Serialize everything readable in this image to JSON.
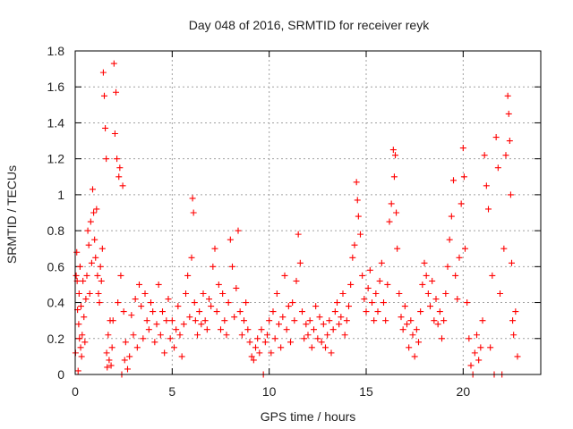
{
  "chart_data": {
    "type": "scatter",
    "title": "Day 048 of 2016, SRMTID for receiver reyk",
    "xlabel": "GPS time / hours",
    "ylabel": "SRMTID / TECUs",
    "xlim": [
      0,
      24
    ],
    "ylim": [
      0,
      1.8
    ],
    "xticks": [
      0,
      5,
      10,
      15,
      20
    ],
    "xtick_labels": [
      "0",
      "5",
      "10",
      "15",
      "20"
    ],
    "yticks": [
      0,
      0.2,
      0.4,
      0.6,
      0.8,
      1,
      1.2,
      1.4,
      1.6,
      1.8
    ],
    "ytick_labels": [
      "0",
      "0.2",
      "0.4",
      "0.6",
      "0.8",
      "1",
      "1.2",
      "1.4",
      "1.6",
      "1.8"
    ],
    "grid": true,
    "marker": "+",
    "marker_color": "#ff0000",
    "grid_color": "#a0a0a0",
    "axis_color": "#000000",
    "series": [
      {
        "name": "SRMTID",
        "points": [
          [
            0.02,
            0.12
          ],
          [
            0.05,
            0.55
          ],
          [
            0.08,
            0.68
          ],
          [
            0.1,
            0.52
          ],
          [
            0.12,
            0.36
          ],
          [
            0.15,
            0.02
          ],
          [
            0.18,
            0.28
          ],
          [
            0.2,
            0.45
          ],
          [
            0.22,
            0.2
          ],
          [
            0.25,
            0.6
          ],
          [
            0.28,
            0.15
          ],
          [
            0.3,
            0.38
          ],
          [
            0.33,
            0.1
          ],
          [
            0.36,
            0.22
          ],
          [
            0.4,
            0.52
          ],
          [
            0.45,
            0.32
          ],
          [
            0.5,
            0.18
          ],
          [
            0.55,
            0.42
          ],
          [
            0.6,
            0.55
          ],
          [
            0.65,
            0.8
          ],
          [
            0.7,
            0.72
          ],
          [
            0.75,
            0.45
          ],
          [
            0.8,
            0.85
          ],
          [
            0.85,
            0.62
          ],
          [
            0.9,
            1.03
          ],
          [
            0.95,
            0.9
          ],
          [
            1.0,
            0.75
          ],
          [
            1.05,
            0.65
          ],
          [
            1.1,
            0.92
          ],
          [
            1.15,
            0.55
          ],
          [
            1.2,
            0.45
          ],
          [
            1.25,
            0.4
          ],
          [
            1.3,
            0.6
          ],
          [
            1.35,
            0.52
          ],
          [
            1.4,
            0.7
          ],
          [
            1.45,
            1.68
          ],
          [
            1.5,
            1.55
          ],
          [
            1.55,
            1.37
          ],
          [
            1.6,
            1.2
          ],
          [
            1.62,
            0.12
          ],
          [
            1.65,
            0.04
          ],
          [
            1.7,
            0.22
          ],
          [
            1.75,
            0.08
          ],
          [
            1.8,
            0.3
          ],
          [
            1.85,
            0.05
          ],
          [
            1.9,
            0.15
          ],
          [
            1.95,
            0.3
          ],
          [
            2.0,
            1.73
          ],
          [
            2.05,
            1.34
          ],
          [
            2.1,
            1.57
          ],
          [
            2.15,
            1.2
          ],
          [
            2.2,
            0.4
          ],
          [
            2.25,
            1.1
          ],
          [
            2.3,
            1.15
          ],
          [
            2.35,
            0.55
          ],
          [
            2.4,
            0.0
          ],
          [
            2.45,
            1.05
          ],
          [
            2.5,
            0.35
          ],
          [
            2.55,
            0.08
          ],
          [
            2.6,
            0.18
          ],
          [
            2.7,
            0.03
          ],
          [
            2.8,
            0.1
          ],
          [
            2.9,
            0.33
          ],
          [
            3.0,
            0.22
          ],
          [
            3.1,
            0.42
          ],
          [
            3.2,
            0.15
          ],
          [
            3.3,
            0.5
          ],
          [
            3.4,
            0.38
          ],
          [
            3.5,
            0.2
          ],
          [
            3.6,
            0.45
          ],
          [
            3.7,
            0.3
          ],
          [
            3.8,
            0.25
          ],
          [
            3.9,
            0.4
          ],
          [
            4.0,
            0.35
          ],
          [
            4.1,
            0.18
          ],
          [
            4.2,
            0.28
          ],
          [
            4.3,
            0.5
          ],
          [
            4.4,
            0.22
          ],
          [
            4.5,
            0.35
          ],
          [
            4.6,
            0.12
          ],
          [
            4.7,
            0.3
          ],
          [
            4.8,
            0.42
          ],
          [
            4.9,
            0.2
          ],
          [
            5.0,
            0.3
          ],
          [
            5.1,
            0.15
          ],
          [
            5.2,
            0.25
          ],
          [
            5.3,
            0.38
          ],
          [
            5.4,
            0.22
          ],
          [
            5.5,
            0.1
          ],
          [
            5.6,
            0.28
          ],
          [
            5.7,
            0.45
          ],
          [
            5.8,
            0.55
          ],
          [
            5.9,
            0.32
          ],
          [
            6.0,
            0.65
          ],
          [
            6.05,
            0.98
          ],
          [
            6.1,
            0.9
          ],
          [
            6.15,
            0.4
          ],
          [
            6.2,
            0.3
          ],
          [
            6.3,
            0.22
          ],
          [
            6.4,
            0.35
          ],
          [
            6.5,
            0.28
          ],
          [
            6.6,
            0.45
          ],
          [
            6.7,
            0.3
          ],
          [
            6.8,
            0.25
          ],
          [
            6.9,
            0.42
          ],
          [
            7.0,
            0.38
          ],
          [
            7.1,
            0.6
          ],
          [
            7.2,
            0.7
          ],
          [
            7.3,
            0.35
          ],
          [
            7.4,
            0.5
          ],
          [
            7.5,
            0.25
          ],
          [
            7.6,
            0.45
          ],
          [
            7.7,
            0.3
          ],
          [
            7.8,
            0.22
          ],
          [
            7.9,
            0.4
          ],
          [
            8.0,
            0.75
          ],
          [
            8.1,
            0.6
          ],
          [
            8.2,
            0.32
          ],
          [
            8.3,
            0.48
          ],
          [
            8.4,
            0.8
          ],
          [
            8.5,
            0.35
          ],
          [
            8.6,
            0.22
          ],
          [
            8.7,
            0.3
          ],
          [
            8.8,
            0.4
          ],
          [
            8.9,
            0.25
          ],
          [
            9.0,
            0.18
          ],
          [
            9.1,
            0.1
          ],
          [
            9.2,
            0.08
          ],
          [
            9.3,
            0.15
          ],
          [
            9.4,
            0.2
          ],
          [
            9.5,
            0.12
          ],
          [
            9.6,
            0.25
          ],
          [
            9.7,
            0.0
          ],
          [
            9.8,
            0.18
          ],
          [
            9.9,
            0.22
          ],
          [
            10.0,
            0.3
          ],
          [
            10.1,
            0.12
          ],
          [
            10.2,
            0.35
          ],
          [
            10.3,
            0.2
          ],
          [
            10.4,
            0.45
          ],
          [
            10.5,
            0.28
          ],
          [
            10.6,
            0.15
          ],
          [
            10.7,
            0.32
          ],
          [
            10.8,
            0.55
          ],
          [
            10.9,
            0.25
          ],
          [
            11.0,
            0.38
          ],
          [
            11.1,
            0.18
          ],
          [
            11.2,
            0.4
          ],
          [
            11.3,
            0.3
          ],
          [
            11.4,
            0.52
          ],
          [
            11.5,
            0.78
          ],
          [
            11.6,
            0.62
          ],
          [
            11.7,
            0.35
          ],
          [
            11.8,
            0.2
          ],
          [
            11.9,
            0.28
          ],
          [
            12.0,
            0.22
          ],
          [
            12.1,
            0.3
          ],
          [
            12.2,
            0.15
          ],
          [
            12.3,
            0.25
          ],
          [
            12.4,
            0.38
          ],
          [
            12.5,
            0.2
          ],
          [
            12.6,
            0.32
          ],
          [
            12.7,
            0.18
          ],
          [
            12.8,
            0.28
          ],
          [
            12.9,
            0.15
          ],
          [
            13.0,
            0.22
          ],
          [
            13.1,
            0.3
          ],
          [
            13.2,
            0.12
          ],
          [
            13.3,
            0.25
          ],
          [
            13.4,
            0.35
          ],
          [
            13.5,
            0.4
          ],
          [
            13.6,
            0.28
          ],
          [
            13.7,
            0.32
          ],
          [
            13.8,
            0.45
          ],
          [
            13.9,
            0.22
          ],
          [
            14.0,
            0.3
          ],
          [
            14.1,
            0.38
          ],
          [
            14.2,
            0.5
          ],
          [
            14.3,
            0.65
          ],
          [
            14.4,
            0.72
          ],
          [
            14.5,
            1.07
          ],
          [
            14.55,
            0.97
          ],
          [
            14.6,
            0.88
          ],
          [
            14.7,
            0.78
          ],
          [
            14.8,
            0.55
          ],
          [
            14.9,
            0.42
          ],
          [
            15.0,
            0.35
          ],
          [
            15.1,
            0.48
          ],
          [
            15.2,
            0.58
          ],
          [
            15.3,
            0.4
          ],
          [
            15.4,
            0.3
          ],
          [
            15.5,
            0.45
          ],
          [
            15.6,
            0.35
          ],
          [
            15.7,
            0.52
          ],
          [
            15.8,
            0.62
          ],
          [
            15.9,
            0.4
          ],
          [
            16.0,
            0.3
          ],
          [
            16.1,
            0.5
          ],
          [
            16.2,
            0.85
          ],
          [
            16.3,
            0.95
          ],
          [
            16.4,
            1.25
          ],
          [
            16.45,
            1.1
          ],
          [
            16.5,
            1.22
          ],
          [
            16.55,
            0.9
          ],
          [
            16.6,
            0.7
          ],
          [
            16.7,
            0.45
          ],
          [
            16.8,
            0.32
          ],
          [
            16.9,
            0.25
          ],
          [
            17.0,
            0.38
          ],
          [
            17.1,
            0.28
          ],
          [
            17.2,
            0.15
          ],
          [
            17.3,
            0.3
          ],
          [
            17.4,
            0.22
          ],
          [
            17.5,
            0.1
          ],
          [
            17.6,
            0.25
          ],
          [
            17.7,
            0.18
          ],
          [
            17.8,
            0.35
          ],
          [
            17.9,
            0.5
          ],
          [
            18.0,
            0.62
          ],
          [
            18.1,
            0.55
          ],
          [
            18.2,
            0.45
          ],
          [
            18.3,
            0.38
          ],
          [
            18.4,
            0.52
          ],
          [
            18.5,
            0.3
          ],
          [
            18.6,
            0.42
          ],
          [
            18.7,
            0.28
          ],
          [
            18.8,
            0.35
          ],
          [
            18.9,
            0.2
          ],
          [
            19.0,
            0.3
          ],
          [
            19.1,
            0.45
          ],
          [
            19.2,
            0.6
          ],
          [
            19.3,
            0.75
          ],
          [
            19.4,
            0.88
          ],
          [
            19.5,
            1.08
          ],
          [
            19.6,
            0.55
          ],
          [
            19.7,
            0.42
          ],
          [
            19.8,
            0.65
          ],
          [
            19.9,
            0.95
          ],
          [
            20.0,
            1.26
          ],
          [
            20.05,
            1.1
          ],
          [
            20.1,
            0.7
          ],
          [
            20.2,
            0.4
          ],
          [
            20.3,
            0.2
          ],
          [
            20.4,
            0.05
          ],
          [
            20.5,
            0.0
          ],
          [
            20.6,
            0.12
          ],
          [
            20.7,
            0.22
          ],
          [
            20.8,
            0.08
          ],
          [
            20.9,
            0.15
          ],
          [
            21.0,
            0.3
          ],
          [
            21.1,
            1.22
          ],
          [
            21.2,
            1.05
          ],
          [
            21.3,
            0.92
          ],
          [
            21.4,
            0.15
          ],
          [
            21.5,
            0.55
          ],
          [
            21.6,
            0.0
          ],
          [
            21.7,
            1.32
          ],
          [
            21.8,
            1.15
          ],
          [
            21.9,
            0.45
          ],
          [
            22.0,
            0.0
          ],
          [
            22.1,
            0.7
          ],
          [
            22.2,
            1.22
          ],
          [
            22.3,
            1.55
          ],
          [
            22.35,
            1.45
          ],
          [
            22.4,
            1.3
          ],
          [
            22.45,
            1.0
          ],
          [
            22.5,
            0.62
          ],
          [
            22.55,
            0.3
          ],
          [
            22.6,
            0.22
          ],
          [
            22.7,
            0.35
          ],
          [
            22.8,
            0.1
          ]
        ]
      }
    ]
  }
}
